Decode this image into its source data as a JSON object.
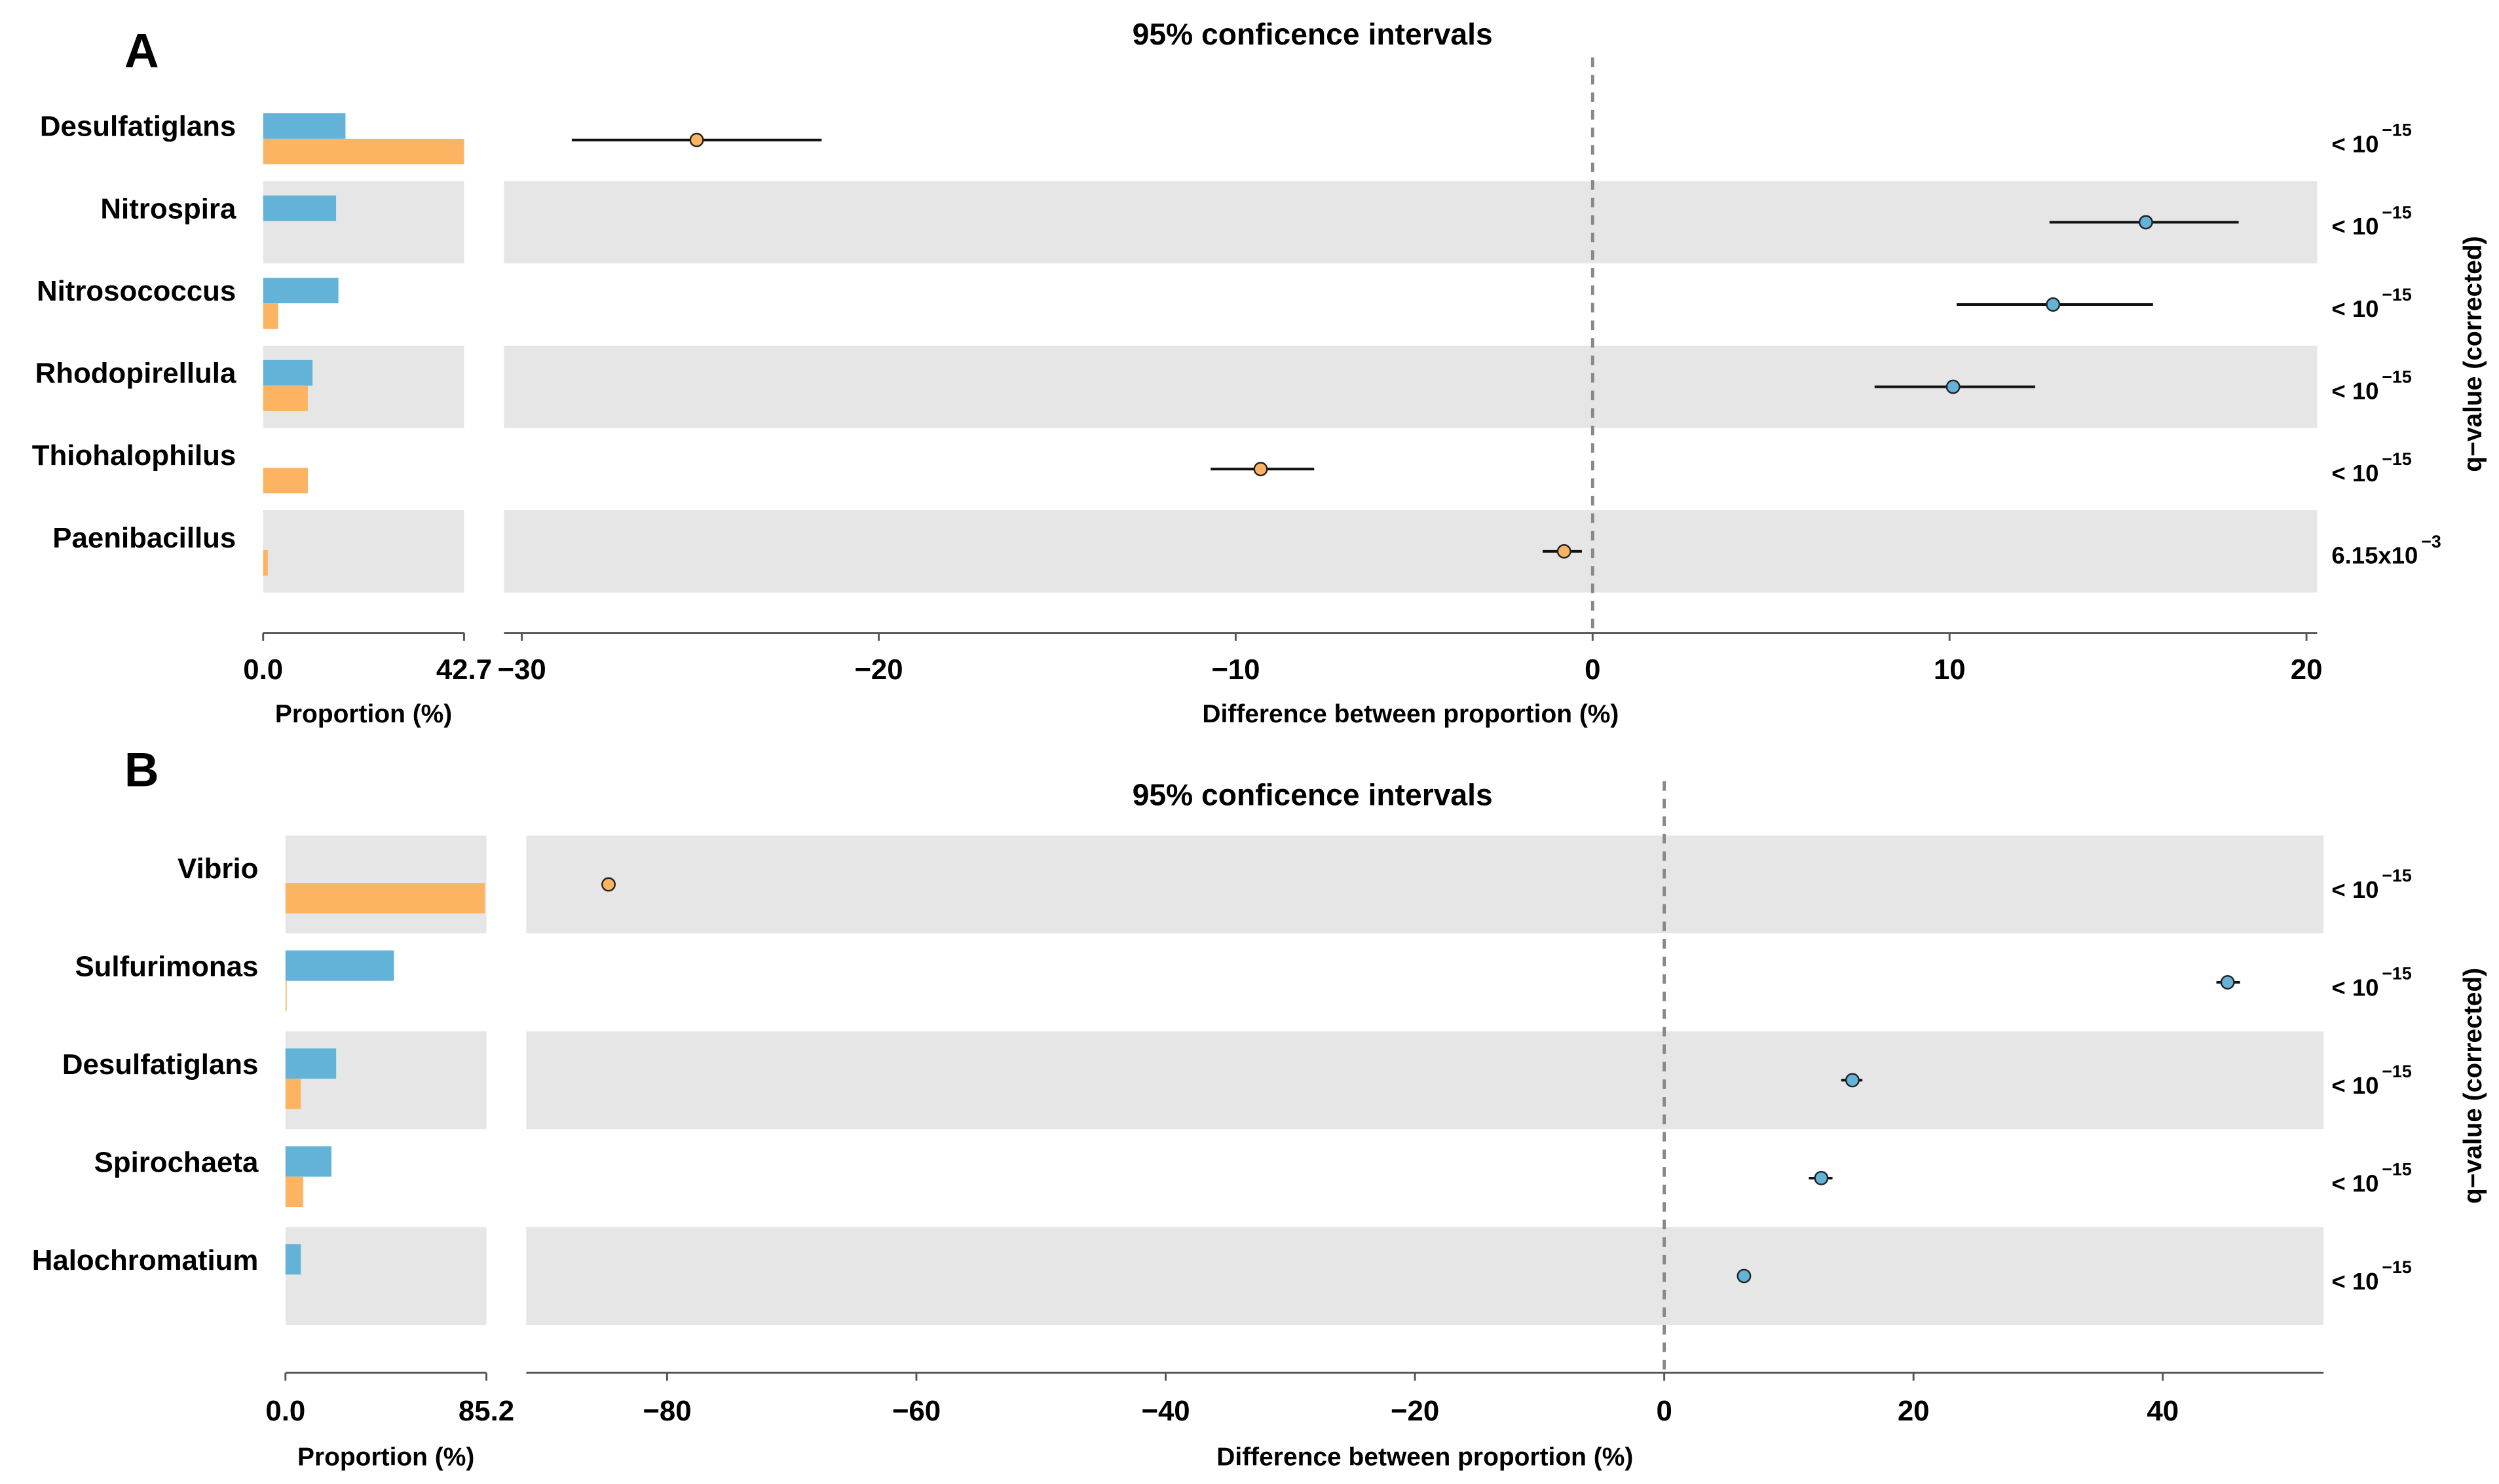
{
  "chart_data": [
    {
      "panel_label": "A",
      "type": "bar",
      "title": "95% conficence intervals",
      "left_xlabel": "Proportion (%)",
      "xlabel": "Difference between proportion (%)",
      "right_label": "q−value (corrected)",
      "prop_xlim": [
        0,
        42.7
      ],
      "prop_ticks": [
        "0.0",
        "42.7"
      ],
      "diff_xlim": [
        -30.5,
        20.3
      ],
      "diff_ticks": [
        -30,
        -20,
        -10,
        0,
        10,
        20
      ],
      "colors": {
        "group1": "#63b3d8",
        "group2": "#fdb462",
        "band": "#e6e6e6"
      },
      "categories": [
        "Desulfatiglans",
        "Nitrospira",
        "Nitrosococcus",
        "Rhodopirellula",
        "Thiohalophilus",
        "Paenibacillus"
      ],
      "series": [
        {
          "name": "group1",
          "values": [
            17.5,
            15.5,
            16.0,
            10.5,
            0,
            0
          ]
        },
        {
          "name": "group2",
          "values": [
            42.7,
            0,
            3.2,
            9.5,
            9.5,
            1.0
          ]
        }
      ],
      "differences": [
        {
          "category": "Desulfatiglans",
          "diff": -25.1,
          "ci": [
            -28.6,
            -21.6
          ],
          "higher": "group2",
          "q_main": "< 10",
          "q_exp": "−15"
        },
        {
          "category": "Nitrospira",
          "diff": 15.5,
          "ci": [
            12.8,
            18.1
          ],
          "higher": "group1",
          "q_main": "< 10",
          "q_exp": "−15"
        },
        {
          "category": "Nitrosococcus",
          "diff": 12.9,
          "ci": [
            10.2,
            15.7
          ],
          "higher": "group1",
          "q_main": "< 10",
          "q_exp": "−15"
        },
        {
          "category": "Rhodopirellula",
          "diff": 10.1,
          "ci": [
            7.9,
            12.4
          ],
          "higher": "group1",
          "q_main": "< 10",
          "q_exp": "−15"
        },
        {
          "category": "Thiohalophilus",
          "diff": -9.3,
          "ci": [
            -10.7,
            -7.8
          ],
          "higher": "group2",
          "q_main": "< 10",
          "q_exp": "−15"
        },
        {
          "category": "Paenibacillus",
          "diff": -0.8,
          "ci": [
            -1.4,
            -0.3
          ],
          "higher": "group2",
          "q_main": "6.15x10",
          "q_exp": "−3"
        }
      ]
    },
    {
      "panel_label": "B",
      "type": "bar",
      "title": "95% conficence intervals",
      "left_xlabel": "Proportion (%)",
      "xlabel": "Difference between proportion (%)",
      "right_label": "q−value (corrected)",
      "prop_xlim": [
        0,
        85.2
      ],
      "prop_ticks": [
        "0.0",
        "85.2"
      ],
      "diff_xlim": [
        -91.3,
        52.9
      ],
      "diff_ticks": [
        -80,
        -60,
        -40,
        -20,
        0,
        20,
        40
      ],
      "colors": {
        "group1": "#63b3d8",
        "group2": "#fdb462",
        "band": "#e6e6e6"
      },
      "categories": [
        "Vibrio",
        "Sulfurimonas",
        "Desulfatiglans",
        "Spirochaeta",
        "Halochromatium"
      ],
      "series": [
        {
          "name": "group1",
          "values": [
            0,
            46.0,
            21.5,
            19.5,
            6.5
          ]
        },
        {
          "name": "group2",
          "values": [
            84.5,
            0.5,
            6.5,
            7.5,
            0
          ]
        }
      ],
      "differences": [
        {
          "category": "Vibrio",
          "diff": -84.7,
          "ci": [
            -85.0,
            -84.4
          ],
          "higher": "group2",
          "q_main": "< 10",
          "q_exp": "−15"
        },
        {
          "category": "Sulfurimonas",
          "diff": 45.2,
          "ci": [
            44.3,
            46.2
          ],
          "higher": "group1",
          "q_main": "< 10",
          "q_exp": "−15"
        },
        {
          "category": "Desulfatiglans",
          "diff": 15.1,
          "ci": [
            14.2,
            15.9
          ],
          "higher": "group1",
          "q_main": "< 10",
          "q_exp": "−15"
        },
        {
          "category": "Spirochaeta",
          "diff": 12.6,
          "ci": [
            11.6,
            13.5
          ],
          "higher": "group1",
          "q_main": "< 10",
          "q_exp": "−15"
        },
        {
          "category": "Halochromatium",
          "diff": 6.4,
          "ci": [
            6.1,
            6.7
          ],
          "higher": "group1",
          "q_main": "< 10",
          "q_exp": "−15"
        }
      ]
    }
  ]
}
